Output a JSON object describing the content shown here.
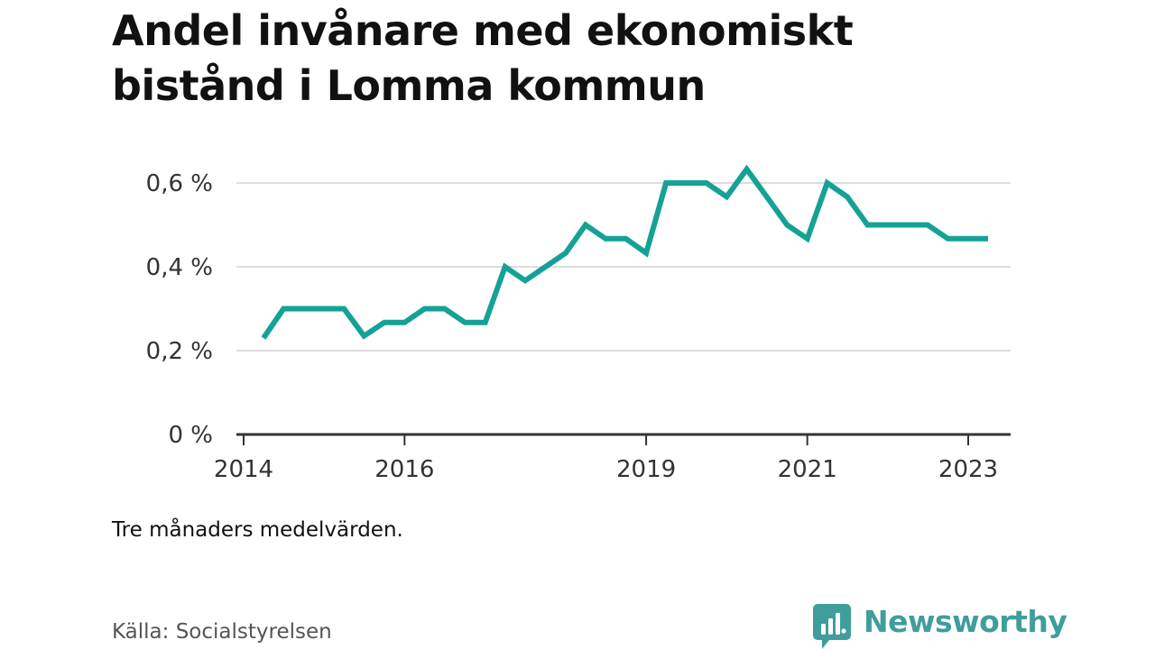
{
  "chart_data": {
    "type": "line",
    "title": "Andel invånare med ekonomiskt bistånd i Lomma kommun",
    "subtitle": "",
    "xlabel": "",
    "ylabel": "",
    "note": "Tre månaders medelvärden.",
    "source": "Källa: Socialstyrelsen",
    "ylim": [
      0,
      0.72
    ],
    "xlim": [
      "2014-01-01",
      "2023-06-01"
    ],
    "y_ticks": [
      {
        "value": 0,
        "label": "0 %"
      },
      {
        "value": 0.2,
        "label": "0,2 %"
      },
      {
        "value": 0.4,
        "label": "0,4 %"
      },
      {
        "value": 0.6,
        "label": "0,6 %"
      }
    ],
    "x_ticks": [
      {
        "value": "2014-01-01",
        "label": "2014"
      },
      {
        "value": "2016-01-01",
        "label": "2016"
      },
      {
        "value": "2019-01-01",
        "label": "2019"
      },
      {
        "value": "2021-01-01",
        "label": "2021"
      },
      {
        "value": "2023-01-01",
        "label": "2023"
      }
    ],
    "grid": true,
    "legend": "none",
    "series": [
      {
        "color": "#14a295",
        "points": [
          {
            "x": "2014-04-01",
            "y": 0.23
          },
          {
            "x": "2014-07-01",
            "y": 0.3
          },
          {
            "x": "2014-10-01",
            "y": 0.3
          },
          {
            "x": "2015-01-01",
            "y": 0.3
          },
          {
            "x": "2015-04-01",
            "y": 0.3
          },
          {
            "x": "2015-07-01",
            "y": 0.235
          },
          {
            "x": "2015-10-01",
            "y": 0.267
          },
          {
            "x": "2016-01-01",
            "y": 0.267
          },
          {
            "x": "2016-04-01",
            "y": 0.3
          },
          {
            "x": "2016-07-01",
            "y": 0.3
          },
          {
            "x": "2016-10-01",
            "y": 0.267
          },
          {
            "x": "2017-01-01",
            "y": 0.267
          },
          {
            "x": "2017-04-01",
            "y": 0.4
          },
          {
            "x": "2017-07-01",
            "y": 0.367
          },
          {
            "x": "2017-10-01",
            "y": 0.4
          },
          {
            "x": "2018-01-01",
            "y": 0.433
          },
          {
            "x": "2018-04-01",
            "y": 0.5
          },
          {
            "x": "2018-07-01",
            "y": 0.467
          },
          {
            "x": "2018-10-01",
            "y": 0.467
          },
          {
            "x": "2019-01-01",
            "y": 0.433
          },
          {
            "x": "2019-04-01",
            "y": 0.6
          },
          {
            "x": "2019-07-01",
            "y": 0.6
          },
          {
            "x": "2019-10-01",
            "y": 0.6
          },
          {
            "x": "2020-01-01",
            "y": 0.567
          },
          {
            "x": "2020-04-01",
            "y": 0.633
          },
          {
            "x": "2020-07-01",
            "y": 0.567
          },
          {
            "x": "2020-10-01",
            "y": 0.5
          },
          {
            "x": "2021-01-01",
            "y": 0.467
          },
          {
            "x": "2021-04-01",
            "y": 0.6
          },
          {
            "x": "2021-07-01",
            "y": 0.567
          },
          {
            "x": "2021-10-01",
            "y": 0.5
          },
          {
            "x": "2022-01-01",
            "y": 0.5
          },
          {
            "x": "2022-04-01",
            "y": 0.5
          },
          {
            "x": "2022-07-01",
            "y": 0.5
          },
          {
            "x": "2022-10-01",
            "y": 0.467
          },
          {
            "x": "2023-01-01",
            "y": 0.467
          },
          {
            "x": "2023-04-01",
            "y": 0.467
          }
        ]
      }
    ]
  },
  "brand": {
    "name": "Newsworthy",
    "icon": "newsworthy-logo-icon",
    "color": "#3f9e9c"
  },
  "colors": {
    "line": "#14a295",
    "grid": "#dddddd",
    "axis": "#333333",
    "title": "#111111",
    "source": "#555555"
  }
}
